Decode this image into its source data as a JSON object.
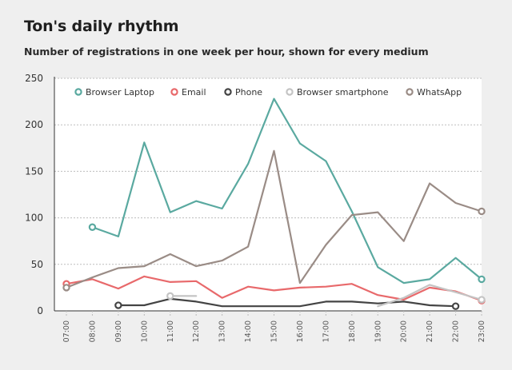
{
  "title": "Ton's daily rhythm",
  "subtitle": "Number of registrations in one week per hour, shown for every medium",
  "chart_data": {
    "type": "line",
    "x": [
      "07:00",
      "08:00",
      "09:00",
      "10:00",
      "11:00",
      "12:00",
      "13:00",
      "14:00",
      "15:00",
      "16:00",
      "17:00",
      "18:00",
      "19:00",
      "20:00",
      "21:00",
      "22:00",
      "23:00"
    ],
    "ylim": [
      0,
      250
    ],
    "yticks": [
      0,
      50,
      100,
      150,
      200,
      250
    ],
    "grid": true,
    "legend_position": "top",
    "series": [
      {
        "name": "Browser Laptop",
        "color": "#5aa9a0",
        "values": [
          null,
          90,
          80,
          181,
          106,
          118,
          110,
          158,
          228,
          180,
          161,
          107,
          47,
          30,
          34,
          57,
          34
        ]
      },
      {
        "name": "Email",
        "color": "#e8696b",
        "values": [
          29,
          34,
          24,
          37,
          31,
          32,
          14,
          26,
          22,
          25,
          26,
          29,
          17,
          12,
          25,
          21,
          11
        ]
      },
      {
        "name": "Phone",
        "color": "#444444",
        "values": [
          null,
          null,
          6,
          6,
          13,
          10,
          5,
          5,
          5,
          5,
          10,
          10,
          8,
          10,
          6,
          5,
          null
        ]
      },
      {
        "name": "Browser smartphone",
        "color": "#c4c4c4",
        "values": [
          null,
          null,
          null,
          null,
          16,
          16,
          null,
          null,
          null,
          null,
          null,
          null,
          5,
          14,
          28,
          20,
          12
        ]
      },
      {
        "name": "WhatsApp",
        "color": "#9a8c86",
        "values": [
          25,
          36,
          46,
          48,
          61,
          48,
          54,
          69,
          172,
          30,
          71,
          103,
          106,
          75,
          137,
          116,
          107
        ]
      }
    ]
  }
}
